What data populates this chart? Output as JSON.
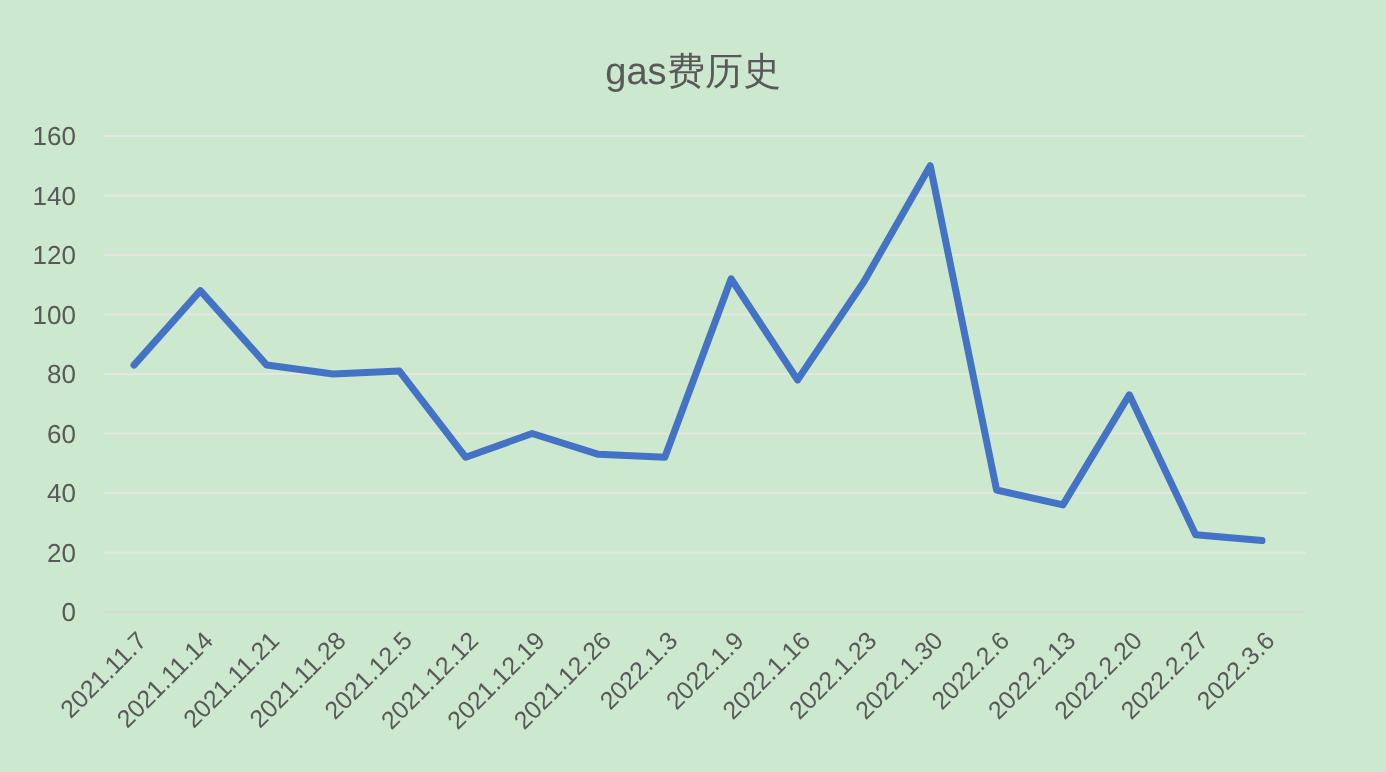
{
  "chart_data": {
    "type": "line",
    "title": "gas费历史",
    "categories": [
      "2021.11.7",
      "2021.11.14",
      "2021.11.21",
      "2021.11.28",
      "2021.12.5",
      "2021.12.12",
      "2021.12.19",
      "2021.12.26",
      "2022.1.3",
      "2022.1.9",
      "2022.1.16",
      "2022.1.23",
      "2022.1.30",
      "2022.2.6",
      "2022.2.13",
      "2022.2.20",
      "2022.2.27",
      "2022.3.6"
    ],
    "series": [
      {
        "color": "#4472c4",
        "values": [
          83,
          108,
          83,
          80,
          81,
          52,
          60,
          53,
          52,
          112,
          78,
          111,
          150,
          41,
          36,
          73,
          26,
          24
        ]
      }
    ],
    "ylim": [
      0,
      160
    ],
    "yticks": [
      0,
      20,
      40,
      60,
      80,
      100,
      120,
      140,
      160
    ],
    "grid": "y",
    "marker": "none",
    "line_style": "solid"
  }
}
